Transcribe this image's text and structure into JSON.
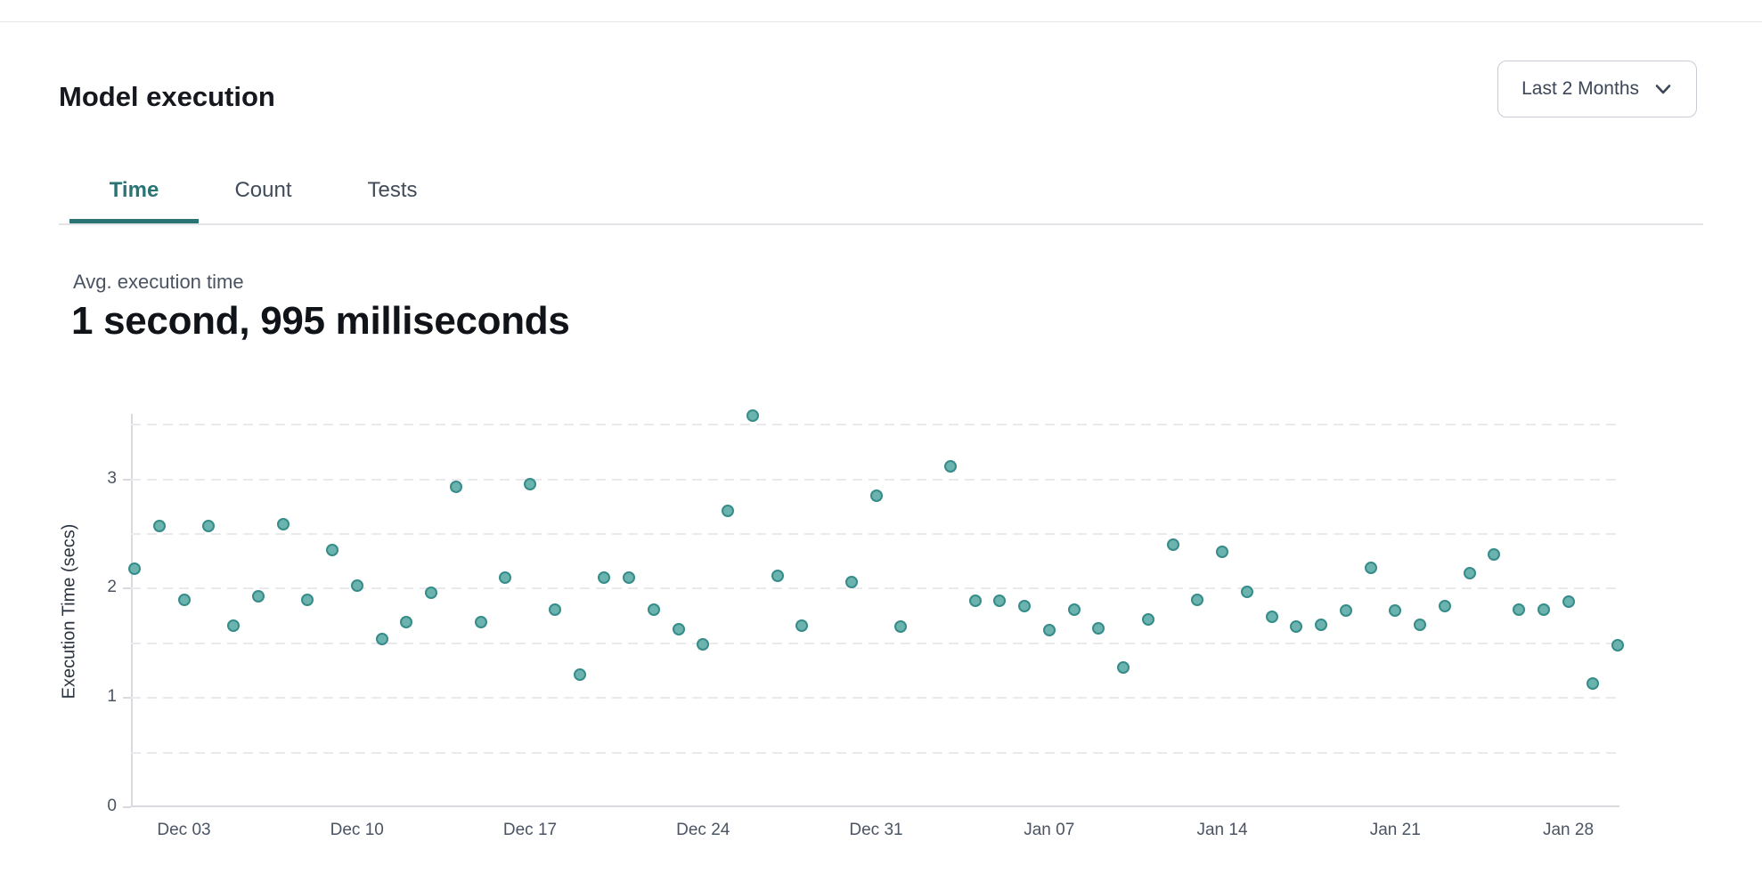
{
  "page": {
    "title": "Model execution"
  },
  "controls": {
    "range_selector": {
      "label": "Last 2 Months",
      "icon": "chevron-down"
    }
  },
  "tabs": [
    {
      "label": "Time",
      "active": true
    },
    {
      "label": "Count",
      "active": false
    },
    {
      "label": "Tests",
      "active": false
    }
  ],
  "stat": {
    "label": "Avg. execution time",
    "value": "1 second, 995 milliseconds"
  },
  "colors": {
    "accent": "#2a7475",
    "grid": "#e9e9ee",
    "axis": "#d9d9df",
    "tick-text": "#4b5463"
  },
  "chart_data": {
    "type": "scatter",
    "title": "",
    "xlabel": "",
    "ylabel": "Execution Time (secs)",
    "ylim": [
      0,
      3.6
    ],
    "y_ticks": [
      0,
      1,
      2,
      3
    ],
    "gridline_values": [
      0.5,
      1,
      1.5,
      2,
      2.5,
      3,
      3.5
    ],
    "grid_style": "dashed horizontal",
    "legend": "none",
    "marker": {
      "fill": "#6bb3af",
      "stroke": "#368c89"
    },
    "x_ticks": [
      {
        "day": 2,
        "label": "Dec 03"
      },
      {
        "day": 9,
        "label": "Dec 10"
      },
      {
        "day": 16,
        "label": "Dec 17"
      },
      {
        "day": 23,
        "label": "Dec 24"
      },
      {
        "day": 30,
        "label": "Dec 31"
      },
      {
        "day": 37,
        "label": "Jan 07"
      },
      {
        "day": 44,
        "label": "Jan 14"
      },
      {
        "day": 51,
        "label": "Jan 21"
      },
      {
        "day": 58,
        "label": "Jan 28"
      }
    ],
    "x_range_days": [
      0,
      60
    ],
    "points": [
      {
        "date": "Dec 01",
        "day": 0,
        "secs": 2.18
      },
      {
        "date": "Dec 02",
        "day": 1,
        "secs": 2.57
      },
      {
        "date": "Dec 03",
        "day": 2,
        "secs": 1.9
      },
      {
        "date": "Dec 04",
        "day": 3,
        "secs": 2.57
      },
      {
        "date": "Dec 05",
        "day": 4,
        "secs": 1.66
      },
      {
        "date": "Dec 06",
        "day": 5,
        "secs": 1.93
      },
      {
        "date": "Dec 07",
        "day": 6,
        "secs": 2.59
      },
      {
        "date": "Dec 08",
        "day": 7,
        "secs": 1.9
      },
      {
        "date": "Dec 09",
        "day": 8,
        "secs": 2.35
      },
      {
        "date": "Dec 10",
        "day": 9,
        "secs": 2.03
      },
      {
        "date": "Dec 11",
        "day": 10,
        "secs": 1.54
      },
      {
        "date": "Dec 12",
        "day": 11,
        "secs": 1.69
      },
      {
        "date": "Dec 13",
        "day": 12,
        "secs": 1.96
      },
      {
        "date": "Dec 14",
        "day": 13,
        "secs": 2.93
      },
      {
        "date": "Dec 15",
        "day": 14,
        "secs": 1.69
      },
      {
        "date": "Dec 16",
        "day": 15,
        "secs": 2.1
      },
      {
        "date": "Dec 17",
        "day": 16,
        "secs": 2.96
      },
      {
        "date": "Dec 18",
        "day": 17,
        "secs": 1.81
      },
      {
        "date": "Dec 19",
        "day": 18,
        "secs": 1.21
      },
      {
        "date": "Dec 20",
        "day": 19,
        "secs": 2.1
      },
      {
        "date": "Dec 21",
        "day": 20,
        "secs": 2.1
      },
      {
        "date": "Dec 22",
        "day": 21,
        "secs": 1.81
      },
      {
        "date": "Dec 23",
        "day": 22,
        "secs": 1.63
      },
      {
        "date": "Dec 24",
        "day": 23,
        "secs": 1.49
      },
      {
        "date": "Dec 25",
        "day": 24,
        "secs": 2.71
      },
      {
        "date": "Dec 26",
        "day": 25,
        "secs": 3.58
      },
      {
        "date": "Dec 27",
        "day": 26,
        "secs": 2.12
      },
      {
        "date": "Dec 28",
        "day": 27,
        "secs": 1.66
      },
      {
        "date": "Dec 30",
        "day": 29,
        "secs": 2.06
      },
      {
        "date": "Dec 31",
        "day": 30,
        "secs": 2.85
      },
      {
        "date": "Jan 01",
        "day": 31,
        "secs": 1.65
      },
      {
        "date": "Jan 03",
        "day": 33,
        "secs": 3.12
      },
      {
        "date": "Jan 04",
        "day": 34,
        "secs": 1.89
      },
      {
        "date": "Jan 05",
        "day": 35,
        "secs": 1.89
      },
      {
        "date": "Jan 06",
        "day": 36,
        "secs": 1.84
      },
      {
        "date": "Jan 07",
        "day": 37,
        "secs": 1.62
      },
      {
        "date": "Jan 08",
        "day": 38,
        "secs": 1.81
      },
      {
        "date": "Jan 09",
        "day": 39,
        "secs": 1.64
      },
      {
        "date": "Jan 10",
        "day": 40,
        "secs": 1.28
      },
      {
        "date": "Jan 11",
        "day": 41,
        "secs": 1.72
      },
      {
        "date": "Jan 12",
        "day": 42,
        "secs": 2.4
      },
      {
        "date": "Jan 13",
        "day": 43,
        "secs": 1.9
      },
      {
        "date": "Jan 14",
        "day": 44,
        "secs": 2.34
      },
      {
        "date": "Jan 15",
        "day": 45,
        "secs": 1.97
      },
      {
        "date": "Jan 16",
        "day": 46,
        "secs": 1.74
      },
      {
        "date": "Jan 17",
        "day": 47,
        "secs": 1.65
      },
      {
        "date": "Jan 18",
        "day": 48,
        "secs": 1.67
      },
      {
        "date": "Jan 19",
        "day": 49,
        "secs": 1.8
      },
      {
        "date": "Jan 20",
        "day": 50,
        "secs": 2.19
      },
      {
        "date": "Jan 21",
        "day": 51,
        "secs": 1.8
      },
      {
        "date": "Jan 22",
        "day": 52,
        "secs": 1.67
      },
      {
        "date": "Jan 23",
        "day": 53,
        "secs": 1.84
      },
      {
        "date": "Jan 24",
        "day": 54,
        "secs": 2.14
      },
      {
        "date": "Jan 25",
        "day": 55,
        "secs": 2.31
      },
      {
        "date": "Jan 26",
        "day": 56,
        "secs": 1.81
      },
      {
        "date": "Jan 27",
        "day": 57,
        "secs": 1.81
      },
      {
        "date": "Jan 28",
        "day": 58,
        "secs": 1.88
      },
      {
        "date": "Jan 29",
        "day": 59,
        "secs": 1.13
      },
      {
        "date": "Jan 30",
        "day": 60,
        "secs": 1.48
      }
    ]
  }
}
